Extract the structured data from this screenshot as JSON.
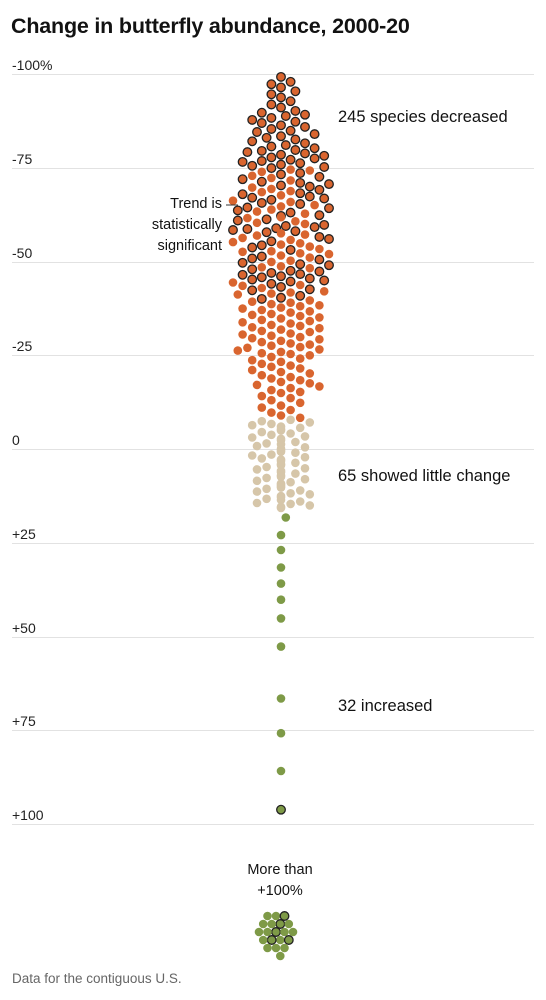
{
  "chart_data": {
    "type": "beeswarm",
    "title": "Change in butterfly abundance, 2000-20",
    "y_axis": {
      "range": [
        -100,
        100
      ],
      "ticks": [
        {
          "value": -100,
          "label": "-100%"
        },
        {
          "value": -75,
          "label": "-75"
        },
        {
          "value": -50,
          "label": "-50"
        },
        {
          "value": -25,
          "label": "-25"
        },
        {
          "value": 0,
          "label": "0"
        },
        {
          "value": 25,
          "label": "+25"
        },
        {
          "value": 50,
          "label": "+50"
        },
        {
          "value": 75,
          "label": "+75"
        },
        {
          "value": 100,
          "label": "+100"
        }
      ],
      "grid": true
    },
    "groups": [
      {
        "key": "decreased",
        "count": 245,
        "label": "245 species decreased",
        "color": "#d9652f",
        "significant_count": 113,
        "range": [
          -100,
          -8
        ]
      },
      {
        "key": "little_change",
        "count": 65,
        "label": "65 showed little change",
        "color": "#d6c6a9",
        "significant_count": 0,
        "range": [
          -8,
          16
        ]
      },
      {
        "key": "increased",
        "count": 32,
        "label": "32 increased",
        "color": "#7e9a47",
        "significant_count": 6,
        "range": [
          16,
          100
        ],
        "extra_above_100": 20
      }
    ],
    "significant_annotation": "Trend is statistically significant",
    "significant_annotation_lines": [
      "Trend is",
      "statistically",
      "significant"
    ],
    "overflow_label_lines": [
      "More than",
      "+100%"
    ],
    "significant_outline_color": "#222222"
  },
  "footer": {
    "source": "Data for the contiguous U.S."
  }
}
